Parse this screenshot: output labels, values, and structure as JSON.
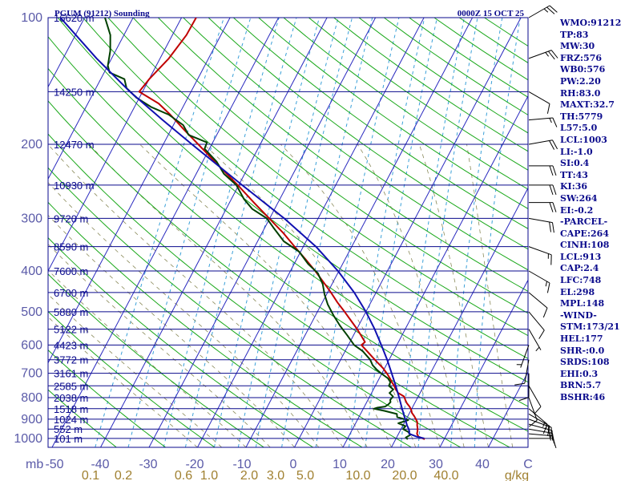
{
  "header": {
    "station": "PGUM (91212) Sounding",
    "time": "0000Z 15 OCT 25"
  },
  "stats": [
    "WMO:91212",
    "TP:83",
    "MW:30",
    "FRZ:576",
    "WB0:576",
    "PW:2.20",
    "RH:83.0",
    "MAXT:32.7",
    "TH:5779",
    "L57:5.0",
    "LCL:1003",
    "LI:-1.0",
    "SI:0.4",
    "TT:43",
    "KI:36",
    "SW:264",
    "EI:-0.2",
    "-PARCEL-",
    "CAPE:264",
    "CINH:108",
    "LCL:913",
    "CAP:2.4",
    "LFC:748",
    "EL:298",
    "MPL:148",
    "-WIND-",
    "STM:173/21",
    "HEL:177",
    "SHR-:0.0",
    "SRDS:108",
    "EHI:0.3",
    "BRN:5.7",
    "BSHR:46"
  ],
  "colors": {
    "isobar": "#0a0a8c",
    "isotherm": "#2a2abf",
    "dry_adiabat": "#1aa81a",
    "moist_adiabat": "#8a8a5a",
    "mixing_ratio": "#3aa0d8",
    "temperature": "#c00000",
    "dewpoint": "#004000",
    "parcel": "#1010b0",
    "wind": "#000000",
    "text": "#0a0a8c",
    "tick_label": "#5a5aa8",
    "mixing_label": "#a08030"
  },
  "chart_data": {
    "type": "line",
    "title": "PGUM (91212) Sounding",
    "subtitle": "0000Z 15 OCT 25",
    "xlabel": "C",
    "ylabel": "mb",
    "pressure_levels": [
      {
        "p": 100,
        "height": "16620 m"
      },
      {
        "p": 150,
        "height": "14250 m"
      },
      {
        "p": 200,
        "height": "12470 m"
      },
      {
        "p": 250,
        "height": "10930 m"
      },
      {
        "p": 300,
        "height": "9720 m"
      },
      {
        "p": 350,
        "height": "8590 m"
      },
      {
        "p": 400,
        "height": "7600 m"
      },
      {
        "p": 450,
        "height": "6700 m"
      },
      {
        "p": 500,
        "height": "5880 m"
      },
      {
        "p": 550,
        "height": "5122 m"
      },
      {
        "p": 600,
        "height": "4423 m"
      },
      {
        "p": 650,
        "height": "3772 m"
      },
      {
        "p": 700,
        "height": "3161 m"
      },
      {
        "p": 750,
        "height": "2585 m"
      },
      {
        "p": 800,
        "height": "2038 m"
      },
      {
        "p": 850,
        "height": "1518 m"
      },
      {
        "p": 900,
        "height": "1024 m"
      },
      {
        "p": 950,
        "height": "552 m"
      },
      {
        "p": 1000,
        "height": "101 m"
      }
    ],
    "pressure_tick_labels": [
      "100",
      "200",
      "300",
      "400",
      "500",
      "600",
      "700",
      "800",
      "900",
      "1000"
    ],
    "temperature_ticks": [
      "-50",
      "-40",
      "-30",
      "-20",
      "-10",
      "0",
      "10",
      "20",
      "30",
      "40"
    ],
    "mixing_ratio_labels": [
      "0.1",
      "0.2",
      "0.6",
      "1.0",
      "2.0",
      "3.0",
      "5.0",
      "10.0",
      "20.0",
      "40.0"
    ],
    "mixing_ratio_unit": "g/kg",
    "skew_label_temps": [
      -40,
      -30,
      -20,
      -10,
      0,
      10,
      20,
      30,
      40
    ],
    "series": [
      {
        "key": "temperature",
        "points": [
          [
            1005,
            26.0
          ],
          [
            990,
            24.4
          ],
          [
            975,
            23.8
          ],
          [
            960,
            23.6
          ],
          [
            945,
            23.3
          ],
          [
            930,
            22.9
          ],
          [
            915,
            22.6
          ],
          [
            900,
            22.0
          ],
          [
            885,
            21.3
          ],
          [
            870,
            20.5
          ],
          [
            855,
            20.0
          ],
          [
            840,
            19.3
          ],
          [
            825,
            18.4
          ],
          [
            810,
            17.7
          ],
          [
            795,
            17.1
          ],
          [
            780,
            15.5
          ],
          [
            765,
            14.6
          ],
          [
            750,
            13.9
          ],
          [
            735,
            13.0
          ],
          [
            720,
            12.2
          ],
          [
            700,
            11.0
          ],
          [
            680,
            9.6
          ],
          [
            660,
            7.9
          ],
          [
            640,
            6.2
          ],
          [
            620,
            4.5
          ],
          [
            600,
            2.7
          ],
          [
            590,
            3.1
          ],
          [
            575,
            2.0
          ],
          [
            550,
            0.1
          ],
          [
            525,
            -2.1
          ],
          [
            500,
            -4.4
          ],
          [
            475,
            -6.9
          ],
          [
            450,
            -9.3
          ],
          [
            425,
            -12.0
          ],
          [
            400,
            -14.9
          ],
          [
            375,
            -18.2
          ],
          [
            350,
            -21.8
          ],
          [
            325,
            -25.6
          ],
          [
            300,
            -30.1
          ],
          [
            275,
            -35.0
          ],
          [
            250,
            -40.2
          ],
          [
            225,
            -46.2
          ],
          [
            200,
            -52.8
          ],
          [
            185,
            -57.2
          ],
          [
            170,
            -61.8
          ],
          [
            160,
            -65.4
          ],
          [
            150,
            -70.7
          ],
          [
            140,
            -70.0
          ],
          [
            125,
            -68.2
          ],
          [
            110,
            -67.1
          ],
          [
            100,
            -67.0
          ]
        ]
      },
      {
        "key": "dewpoint",
        "points": [
          [
            1005,
            22.5
          ],
          [
            995,
            21.9
          ],
          [
            980,
            22.6
          ],
          [
            965,
            21.8
          ],
          [
            950,
            20.4
          ],
          [
            935,
            20.6
          ],
          [
            920,
            18.8
          ],
          [
            905,
            20.5
          ],
          [
            890,
            17.9
          ],
          [
            875,
            17.5
          ],
          [
            860,
            14.6
          ],
          [
            850,
            12.2
          ],
          [
            845,
            12.8
          ],
          [
            840,
            14.3
          ],
          [
            830,
            14.7
          ],
          [
            820,
            14.9
          ],
          [
            810,
            14.6
          ],
          [
            795,
            14.8
          ],
          [
            780,
            13.7
          ],
          [
            765,
            14.1
          ],
          [
            750,
            12.8
          ],
          [
            735,
            12.7
          ],
          [
            720,
            11.8
          ],
          [
            700,
            9.8
          ],
          [
            685,
            8.4
          ],
          [
            670,
            7.2
          ],
          [
            650,
            6.1
          ],
          [
            620,
            3.6
          ],
          [
            600,
            1.2
          ],
          [
            570,
            -1.2
          ],
          [
            540,
            -3.8
          ],
          [
            510,
            -6.3
          ],
          [
            480,
            -8.7
          ],
          [
            455,
            -10.4
          ],
          [
            430,
            -11.9
          ],
          [
            405,
            -14.1
          ],
          [
            385,
            -17.1
          ],
          [
            360,
            -20.3
          ],
          [
            340,
            -24.6
          ],
          [
            315,
            -28.3
          ],
          [
            300,
            -30.6
          ],
          [
            285,
            -34.6
          ],
          [
            270,
            -37.4
          ],
          [
            250,
            -40.5
          ],
          [
            235,
            -44.3
          ],
          [
            220,
            -47.1
          ],
          [
            205,
            -51.0
          ],
          [
            198,
            -51.2
          ],
          [
            190,
            -55.8
          ],
          [
            180,
            -58.0
          ],
          [
            170,
            -62.1
          ],
          [
            163,
            -66.6
          ],
          [
            155,
            -70.6
          ],
          [
            147,
            -73.7
          ],
          [
            140,
            -75.1
          ],
          [
            135,
            -78.9
          ],
          [
            130,
            -80.0
          ],
          [
            120,
            -81.1
          ],
          [
            110,
            -82.8
          ],
          [
            100,
            -85.8
          ]
        ]
      },
      {
        "key": "parcel",
        "points": [
          [
            1000,
            25.8
          ],
          [
            990,
            24.0
          ],
          [
            975,
            22.2
          ],
          [
            960,
            21.9
          ],
          [
            945,
            21.4
          ],
          [
            930,
            20.8
          ],
          [
            915,
            20.3
          ],
          [
            900,
            19.8
          ],
          [
            850,
            18.0
          ],
          [
            800,
            16.2
          ],
          [
            750,
            14.2
          ],
          [
            700,
            12.0
          ],
          [
            650,
            9.6
          ],
          [
            600,
            6.8
          ],
          [
            550,
            3.7
          ],
          [
            500,
            0.0
          ],
          [
            450,
            -4.5
          ],
          [
            400,
            -10.2
          ],
          [
            350,
            -17.4
          ],
          [
            300,
            -27.0
          ],
          [
            250,
            -39.3
          ],
          [
            200,
            -54.1
          ],
          [
            175,
            -62.8
          ],
          [
            150,
            -72.6
          ],
          [
            125,
            -83.1
          ],
          [
            100,
            -95.0
          ]
        ]
      }
    ],
    "wind_barbs": [
      {
        "p": 1000,
        "dir": 90,
        "kt": 10
      },
      {
        "p": 975,
        "dir": 95,
        "kt": 15
      },
      {
        "p": 950,
        "dir": 100,
        "kt": 15
      },
      {
        "p": 925,
        "dir": 105,
        "kt": 15
      },
      {
        "p": 900,
        "dir": 110,
        "kt": 15
      },
      {
        "p": 875,
        "dir": 120,
        "kt": 15
      },
      {
        "p": 850,
        "dir": 130,
        "kt": 15
      },
      {
        "p": 800,
        "dir": 160,
        "kt": 10
      },
      {
        "p": 750,
        "dir": 150,
        "kt": 10
      },
      {
        "p": 700,
        "dir": 180,
        "kt": 10
      },
      {
        "p": 650,
        "dir": 190,
        "kt": 10
      },
      {
        "p": 600,
        "dir": 200,
        "kt": 5
      },
      {
        "p": 550,
        "dir": 150,
        "kt": 5
      },
      {
        "p": 500,
        "dir": 140,
        "kt": 10
      },
      {
        "p": 450,
        "dir": 130,
        "kt": 10
      },
      {
        "p": 400,
        "dir": 120,
        "kt": 15
      },
      {
        "p": 350,
        "dir": 110,
        "kt": 15
      },
      {
        "p": 300,
        "dir": 100,
        "kt": 20
      },
      {
        "p": 275,
        "dir": 90,
        "kt": 20
      },
      {
        "p": 250,
        "dir": 90,
        "kt": 20
      },
      {
        "p": 225,
        "dir": 90,
        "kt": 20
      },
      {
        "p": 200,
        "dir": 80,
        "kt": 20
      },
      {
        "p": 175,
        "dir": 85,
        "kt": 15
      },
      {
        "p": 150,
        "dir": 120,
        "kt": 10
      },
      {
        "p": 125,
        "dir": 70,
        "kt": 25
      },
      {
        "p": 100,
        "dir": 60,
        "kt": 25
      }
    ]
  }
}
